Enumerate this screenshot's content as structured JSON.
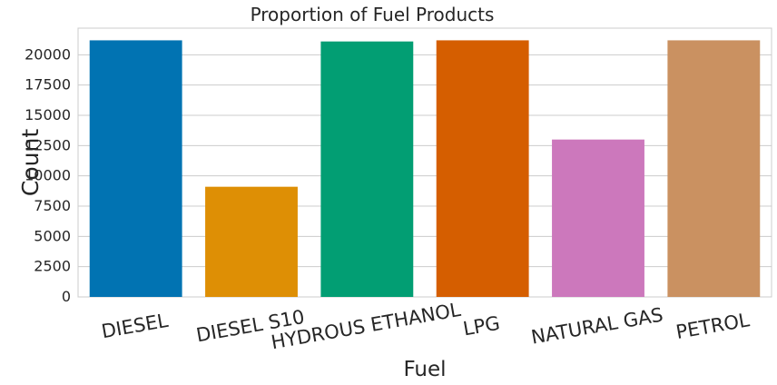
{
  "chart_data": {
    "type": "bar",
    "title": "Proportion of Fuel Products",
    "xlabel": "Fuel",
    "ylabel": "Count",
    "categories": [
      "DIESEL",
      "DIESEL S10",
      "HYDROUS ETHANOL",
      "LPG",
      "NATURAL GAS",
      "PETROL"
    ],
    "values": [
      21194,
      9100,
      21100,
      21194,
      13000,
      21194
    ],
    "colors": [
      "#0173b2",
      "#de8f05",
      "#029e73",
      "#d55e00",
      "#cc78bc",
      "#ca9161"
    ],
    "ylim": [
      0,
      22200
    ],
    "yticks": [
      0,
      2500,
      5000,
      7500,
      10000,
      12500,
      15000,
      17500,
      20000
    ],
    "ytick_labels": [
      "0",
      "2500",
      "5000",
      "7500",
      "10000",
      "12500",
      "15000",
      "17500",
      "20000"
    ],
    "grid": true,
    "grid_axis": "y"
  }
}
